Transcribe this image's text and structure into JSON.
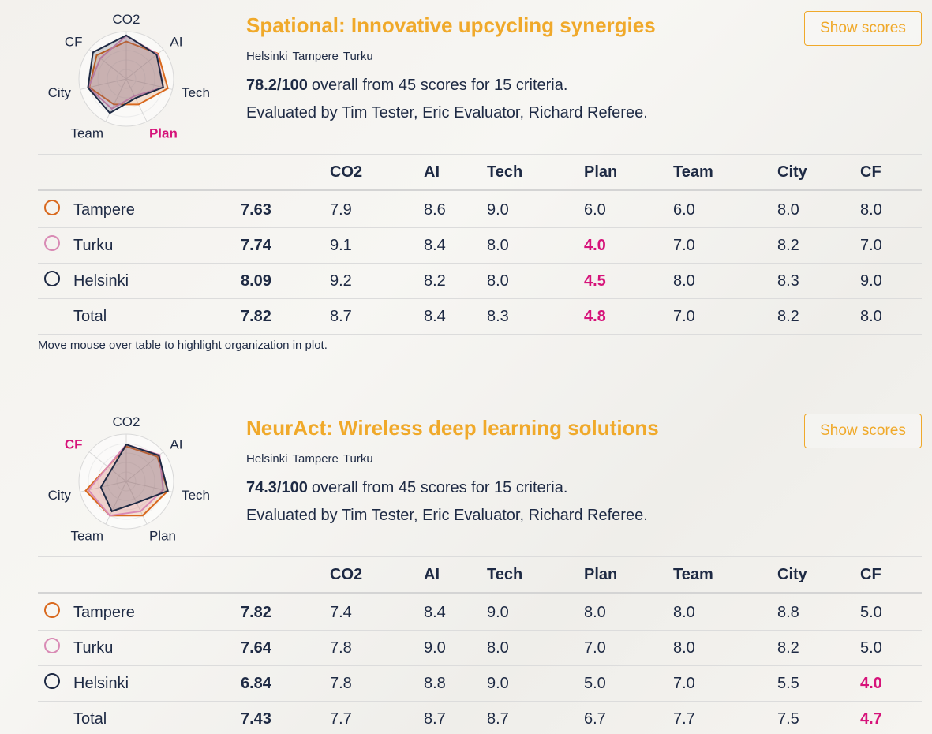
{
  "cards": [
    {
      "title": "Spational: Innovative upcycling synergies",
      "cities": [
        "Helsinki",
        "Tampere",
        "Turku"
      ],
      "score": "78.2/100",
      "summary": "overall from 45 scores for 15 criteria.",
      "evaluators": "Evaluated by Tim Tester, Eric Evaluator, Richard Referee.",
      "button": "Show scores",
      "columns": [
        "CO2",
        "AI",
        "Tech",
        "Plan",
        "Team",
        "City",
        "CF"
      ],
      "rows": [
        {
          "name": "Tampere",
          "color": "#d9691e",
          "overall": "7.63",
          "scores": [
            "7.9",
            "8.6",
            "9.0",
            "6.0",
            "6.0",
            "8.0",
            "8.0"
          ],
          "flagged": []
        },
        {
          "name": "Turku",
          "color": "#d98bb5",
          "overall": "7.74",
          "scores": [
            "9.1",
            "8.4",
            "8.0",
            "4.0",
            "7.0",
            "8.2",
            "7.0"
          ],
          "flagged": [
            3
          ]
        },
        {
          "name": "Helsinki",
          "color": "#1e2a44",
          "overall": "8.09",
          "scores": [
            "9.2",
            "8.2",
            "8.0",
            "4.5",
            "8.0",
            "8.3",
            "9.0"
          ],
          "flagged": [
            3
          ]
        }
      ],
      "total": {
        "name": "Total",
        "overall": "7.82",
        "scores": [
          "8.7",
          "8.4",
          "8.3",
          "4.8",
          "7.0",
          "8.2",
          "8.0"
        ],
        "flagged": [
          3
        ]
      }
    },
    {
      "title": "NeurAct: Wireless deep learning solutions",
      "cities": [
        "Helsinki",
        "Tampere",
        "Turku"
      ],
      "score": "74.3/100",
      "summary": "overall from 45 scores for 15 criteria.",
      "evaluators": "Evaluated by Tim Tester, Eric Evaluator, Richard Referee.",
      "button": "Show scores",
      "columns": [
        "CO2",
        "AI",
        "Tech",
        "Plan",
        "Team",
        "City",
        "CF"
      ],
      "rows": [
        {
          "name": "Tampere",
          "color": "#d9691e",
          "overall": "7.82",
          "scores": [
            "7.4",
            "8.4",
            "9.0",
            "8.0",
            "8.0",
            "8.8",
            "5.0"
          ],
          "flagged": []
        },
        {
          "name": "Turku",
          "color": "#d98bb5",
          "overall": "7.64",
          "scores": [
            "7.8",
            "9.0",
            "8.0",
            "7.0",
            "8.0",
            "8.2",
            "5.0"
          ],
          "flagged": []
        },
        {
          "name": "Helsinki",
          "color": "#1e2a44",
          "overall": "6.84",
          "scores": [
            "7.8",
            "8.8",
            "9.0",
            "5.0",
            "7.0",
            "5.5",
            "4.0"
          ],
          "flagged": [
            6
          ]
        }
      ],
      "total": {
        "name": "Total",
        "overall": "7.43",
        "scores": [
          "7.7",
          "8.7",
          "8.7",
          "6.7",
          "7.7",
          "7.5",
          "4.7"
        ],
        "flagged": [
          6
        ]
      }
    }
  ],
  "hint": "Move mouse over table to highlight organization in plot.",
  "radar": {
    "lim": [
      0,
      10
    ],
    "rings": [
      2,
      4,
      6,
      8,
      10
    ]
  }
}
